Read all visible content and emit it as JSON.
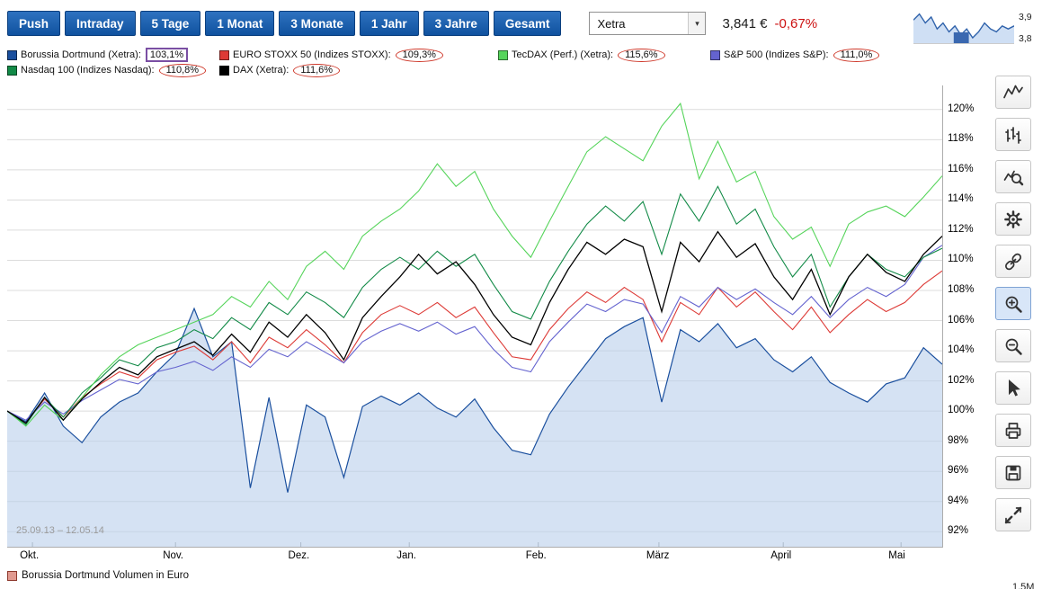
{
  "toolbar": {
    "range_buttons": [
      {
        "label": "Push"
      },
      {
        "label": "Intraday"
      },
      {
        "label": "5 Tage"
      },
      {
        "label": "1 Monat"
      },
      {
        "label": "3 Monate"
      },
      {
        "label": "1 Jahr"
      },
      {
        "label": "3 Jahre"
      },
      {
        "label": "Gesamt"
      }
    ],
    "exchange_select": {
      "value": "Xetra"
    },
    "quote": {
      "price": "3,841 €",
      "change": "-0,67%",
      "change_color": "#cc1111"
    }
  },
  "icons": {
    "chevron_down": "▾"
  },
  "minichart": {
    "high_label": "3,9",
    "low_label": "3,8",
    "values": [
      3.87,
      3.89,
      3.86,
      3.88,
      3.84,
      3.86,
      3.83,
      3.85,
      3.82,
      3.84,
      3.81,
      3.83,
      3.86,
      3.84,
      3.83,
      3.85,
      3.84,
      3.85
    ]
  },
  "legend": {
    "items": [
      {
        "label": "Borussia Dortmund (Xetra):",
        "value": "103,1%",
        "color": "#1a4f9e",
        "annotation": "box"
      },
      {
        "label": "EURO STOXX 50 (Indizes STOXX):",
        "value": "109,3%",
        "color": "#dd3a36",
        "annotation": "circle"
      },
      {
        "label": "TecDAX (Perf.) (Xetra):",
        "value": "115,6%",
        "color": "#55d45a",
        "annotation": "circle"
      },
      {
        "label": "S&P 500 (Indizes S&P):",
        "value": "111,0%",
        "color": "#6463cf",
        "annotation": "circle"
      },
      {
        "label": "Nasdaq 100 (Indizes Nasdaq):",
        "value": "110,8%",
        "color": "#128a47",
        "annotation": "circle"
      },
      {
        "label": "DAX (Xetra):",
        "value": "111,6%",
        "color": "#000000",
        "annotation": "circle"
      }
    ]
  },
  "annotation_colors": {
    "circle": "#cf3a2c",
    "box": "#7a4fa3"
  },
  "chart_data": {
    "type": "line",
    "title": "",
    "range_label": "25.09.13 – 12.05.14",
    "grid": true,
    "legend_position": "top",
    "x_axis": {
      "ticks": [
        "Okt.",
        "Nov.",
        "Dez.",
        "Jan.",
        "Feb.",
        "März",
        "April",
        "Mai"
      ],
      "tick_positions": [
        0.027,
        0.18,
        0.314,
        0.43,
        0.568,
        0.697,
        0.83,
        0.956
      ]
    },
    "y_axis": {
      "unit": "%",
      "min": 91,
      "max": 121.6,
      "ticks": [
        "120%",
        "118%",
        "116%",
        "114%",
        "112%",
        "110%",
        "108%",
        "106%",
        "104%",
        "102%",
        "100%",
        "98%",
        "96%",
        "94%",
        "92%"
      ],
      "tick_values": [
        120,
        118,
        116,
        114,
        112,
        110,
        108,
        106,
        104,
        102,
        100,
        98,
        96,
        94,
        92
      ]
    },
    "series": [
      {
        "id": "bvb",
        "name": "Borussia Dortmund (Xetra)",
        "color": "#1a4f9e",
        "area": true,
        "fill": "#b9cfeb",
        "fill_opacity": 0.6,
        "width": 1.2,
        "final_value": "103,1%",
        "values": [
          100.0,
          99.3,
          101.2,
          99.0,
          97.9,
          99.6,
          100.6,
          101.2,
          102.6,
          103.8,
          106.8,
          103.6,
          104.6,
          94.9,
          100.9,
          94.6,
          100.4,
          99.6,
          95.6,
          100.3,
          101.0,
          100.4,
          101.2,
          100.2,
          99.6,
          100.8,
          98.9,
          97.4,
          97.1,
          99.8,
          101.6,
          103.2,
          104.8,
          105.6,
          106.2,
          100.6,
          105.4,
          104.6,
          105.8,
          104.2,
          104.8,
          103.4,
          102.6,
          103.6,
          101.9,
          101.2,
          100.6,
          101.8,
          102.2,
          104.2,
          103.1
        ]
      },
      {
        "id": "eurostoxx",
        "name": "EURO STOXX 50 (Indizes STOXX)",
        "color": "#dd3a36",
        "width": 1.1,
        "final_value": "109,3%",
        "values": [
          100.0,
          99.2,
          100.8,
          99.6,
          100.9,
          101.8,
          102.6,
          102.2,
          103.4,
          103.9,
          104.3,
          103.4,
          104.6,
          103.2,
          104.9,
          104.2,
          105.4,
          104.4,
          103.2,
          105.2,
          106.4,
          107.0,
          106.4,
          107.2,
          106.2,
          106.9,
          105.2,
          103.6,
          103.4,
          105.4,
          106.8,
          107.9,
          107.2,
          108.2,
          107.4,
          104.6,
          107.2,
          106.4,
          108.2,
          106.9,
          107.9,
          106.6,
          105.4,
          106.9,
          105.2,
          106.4,
          107.4,
          106.6,
          107.2,
          108.4,
          109.3
        ]
      },
      {
        "id": "sp500",
        "name": "S&P 500 (Indizes S&P)",
        "color": "#6463cf",
        "width": 1.1,
        "final_value": "111,0%",
        "values": [
          100.0,
          99.4,
          100.6,
          99.8,
          100.7,
          101.4,
          102.1,
          101.8,
          102.6,
          102.9,
          103.3,
          102.7,
          103.6,
          102.9,
          104.1,
          103.6,
          104.6,
          103.9,
          103.2,
          104.6,
          105.3,
          105.8,
          105.3,
          105.9,
          105.1,
          105.6,
          104.1,
          102.9,
          102.6,
          104.6,
          105.9,
          107.1,
          106.6,
          107.4,
          107.1,
          105.2,
          107.6,
          106.9,
          108.2,
          107.4,
          108.1,
          107.2,
          106.4,
          107.6,
          106.2,
          107.4,
          108.2,
          107.6,
          108.4,
          110.2,
          111.0
        ]
      },
      {
        "id": "nasdaq100",
        "name": "Nasdaq 100 (Indizes Nasdaq)",
        "color": "#128a47",
        "width": 1.1,
        "final_value": "110,8%",
        "values": [
          100.0,
          99.1,
          100.9,
          99.6,
          101.2,
          102.2,
          103.4,
          103.0,
          104.2,
          104.6,
          105.4,
          104.8,
          106.2,
          105.4,
          107.2,
          106.4,
          107.9,
          107.2,
          106.2,
          108.2,
          109.4,
          110.2,
          109.4,
          110.6,
          109.6,
          110.4,
          108.4,
          106.6,
          106.1,
          108.6,
          110.6,
          112.4,
          113.6,
          112.6,
          113.9,
          110.4,
          114.4,
          112.6,
          114.9,
          112.4,
          113.4,
          110.9,
          108.9,
          110.4,
          106.9,
          108.9,
          110.4,
          109.4,
          108.9,
          110.2,
          110.8
        ]
      },
      {
        "id": "tecdax",
        "name": "TecDAX (Perf.) (Xetra)",
        "color": "#55d45a",
        "width": 1.1,
        "final_value": "115,6%",
        "values": [
          100.0,
          99.0,
          100.4,
          99.4,
          100.9,
          102.4,
          103.6,
          104.4,
          104.9,
          105.4,
          105.9,
          106.4,
          107.6,
          106.9,
          108.6,
          107.4,
          109.6,
          110.6,
          109.4,
          111.6,
          112.6,
          113.4,
          114.6,
          116.4,
          114.9,
          115.9,
          113.4,
          111.6,
          110.2,
          112.6,
          114.9,
          117.2,
          118.2,
          117.4,
          116.6,
          118.9,
          120.4,
          115.4,
          117.9,
          115.2,
          115.9,
          112.9,
          111.4,
          112.2,
          109.6,
          112.4,
          113.2,
          113.6,
          112.9,
          114.2,
          115.6
        ]
      },
      {
        "id": "dax",
        "name": "DAX (Xetra)",
        "color": "#000000",
        "width": 1.3,
        "final_value": "111,6%",
        "values": [
          100.0,
          99.2,
          100.9,
          99.4,
          100.8,
          101.9,
          102.9,
          102.4,
          103.6,
          104.1,
          104.6,
          103.7,
          105.1,
          103.9,
          105.9,
          104.9,
          106.4,
          105.2,
          103.4,
          106.2,
          107.6,
          108.9,
          110.4,
          109.1,
          109.9,
          108.4,
          106.4,
          104.9,
          104.4,
          107.2,
          109.4,
          111.2,
          110.4,
          111.4,
          110.9,
          106.6,
          111.2,
          109.9,
          111.9,
          110.2,
          111.1,
          108.9,
          107.4,
          109.4,
          106.4,
          108.9,
          110.4,
          109.2,
          108.6,
          110.4,
          111.6
        ]
      }
    ]
  },
  "volume_legend": {
    "label": "Borussia Dortmund Volumen in Euro",
    "color": "#e19a90"
  },
  "volume_axis_label": "1,5M",
  "sidebar": {
    "tools": [
      {
        "name": "line-chart",
        "selected": false
      },
      {
        "name": "bar-chart",
        "selected": false
      },
      {
        "name": "analyze",
        "selected": false
      },
      {
        "name": "settings",
        "selected": false
      },
      {
        "name": "compare",
        "selected": false
      },
      {
        "name": "zoom-in",
        "selected": true
      },
      {
        "name": "zoom-out",
        "selected": false
      },
      {
        "name": "pointer",
        "selected": false
      },
      {
        "name": "print",
        "selected": false
      },
      {
        "name": "save",
        "selected": false
      },
      {
        "name": "fullscreen",
        "selected": false
      }
    ]
  }
}
